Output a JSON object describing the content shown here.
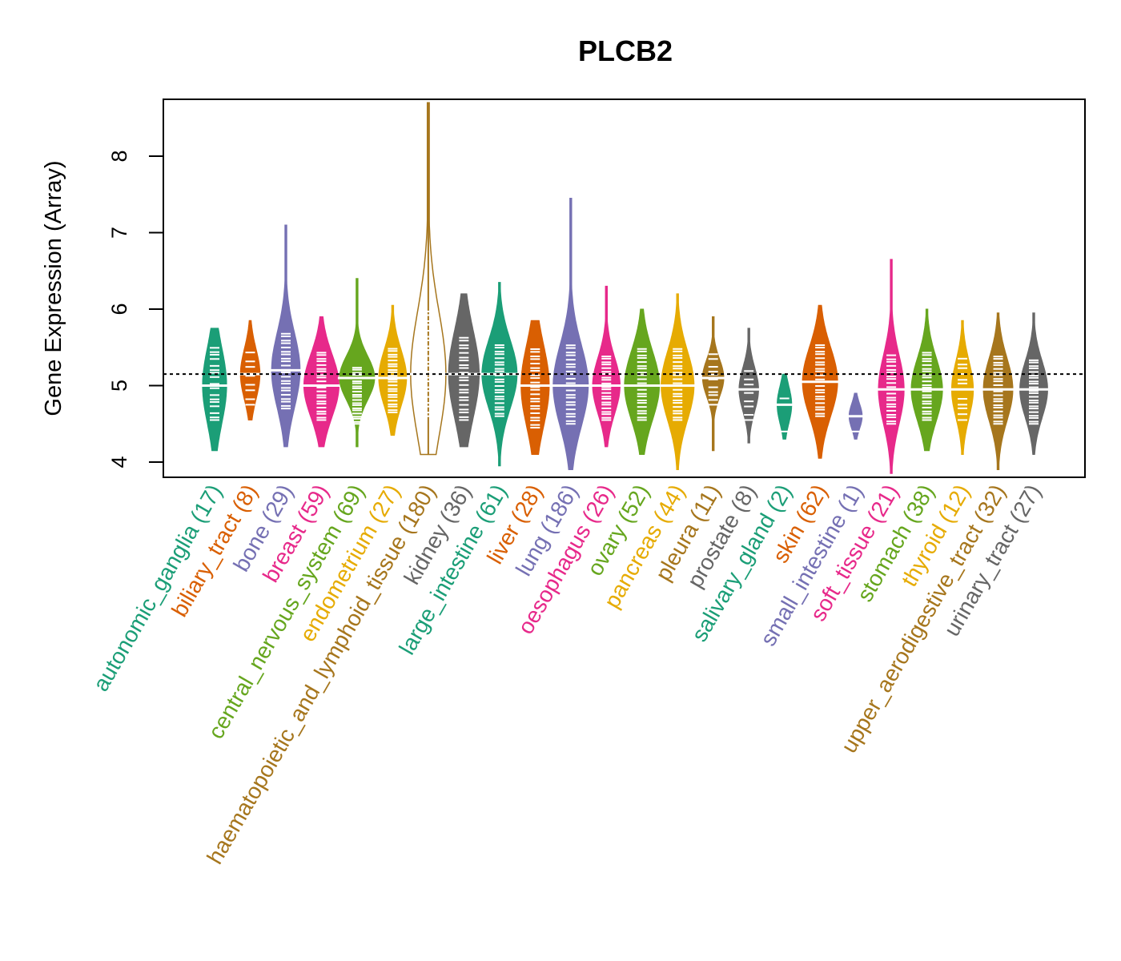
{
  "chart_data": {
    "type": "violin-beeswarm",
    "title": "PLCB2",
    "xlabel": "",
    "ylabel": "Gene Expression (Array)",
    "ylim": [
      3.85,
      8.75
    ],
    "yticks": [
      4,
      5,
      6,
      7,
      8
    ],
    "reference_line": 5.15,
    "grid": false,
    "categories": [
      {
        "name": "autonomic_ganglia",
        "n": 17,
        "color": "#1B9E77",
        "min": 4.15,
        "max": 5.75,
        "median": 5.0,
        "q1": 4.75,
        "q3": 5.35
      },
      {
        "name": "biliary_tract",
        "n": 8,
        "color": "#D95F02",
        "min": 4.55,
        "max": 5.85,
        "median": 5.15,
        "q1": 4.95,
        "q3": 5.35
      },
      {
        "name": "bone",
        "n": 29,
        "color": "#7570B3",
        "min": 4.2,
        "max": 7.1,
        "median": 5.2,
        "q1": 4.9,
        "q3": 5.5
      },
      {
        "name": "breast",
        "n": 59,
        "color": "#E7298A",
        "min": 4.2,
        "max": 5.9,
        "median": 5.0,
        "q1": 4.75,
        "q3": 5.25
      },
      {
        "name": "central_nervous_system",
        "n": 69,
        "color": "#66A61E",
        "min": 4.2,
        "max": 6.4,
        "median": 5.1,
        "q1": 4.7,
        "q3": 5.05
      },
      {
        "name": "endometrium",
        "n": 27,
        "color": "#E6AB02",
        "min": 4.35,
        "max": 6.05,
        "median": 5.1,
        "q1": 4.85,
        "q3": 5.3
      },
      {
        "name": "haematopoietic_and_lymphoid_tissue",
        "n": 180,
        "color": "#A6761D",
        "min": 4.1,
        "max": 8.7,
        "median": 5.15,
        "q1": 4.8,
        "q3": 5.8
      },
      {
        "name": "kidney",
        "n": 36,
        "color": "#666666",
        "min": 4.2,
        "max": 6.2,
        "median": 5.15,
        "q1": 4.75,
        "q3": 5.45
      },
      {
        "name": "large_intestine",
        "n": 61,
        "color": "#1B9E77",
        "min": 3.95,
        "max": 6.35,
        "median": 5.15,
        "q1": 4.8,
        "q3": 5.35
      },
      {
        "name": "liver",
        "n": 28,
        "color": "#D95F02",
        "min": 4.1,
        "max": 5.85,
        "median": 5.0,
        "q1": 4.65,
        "q3": 5.3
      },
      {
        "name": "lung",
        "n": 186,
        "color": "#7570B3",
        "min": 3.9,
        "max": 7.45,
        "median": 5.0,
        "q1": 4.7,
        "q3": 5.35
      },
      {
        "name": "oesophagus",
        "n": 26,
        "color": "#E7298A",
        "min": 4.2,
        "max": 6.3,
        "median": 5.0,
        "q1": 4.75,
        "q3": 5.2
      },
      {
        "name": "ovary",
        "n": 52,
        "color": "#66A61E",
        "min": 4.1,
        "max": 6.0,
        "median": 5.0,
        "q1": 4.75,
        "q3": 5.3
      },
      {
        "name": "pancreas",
        "n": 44,
        "color": "#E6AB02",
        "min": 3.9,
        "max": 6.2,
        "median": 5.0,
        "q1": 4.75,
        "q3": 5.3
      },
      {
        "name": "pleura",
        "n": 11,
        "color": "#A6761D",
        "min": 4.15,
        "max": 5.9,
        "median": 5.1,
        "q1": 4.95,
        "q3": 5.25
      },
      {
        "name": "prostate",
        "n": 8,
        "color": "#666666",
        "min": 4.25,
        "max": 5.75,
        "median": 4.95,
        "q1": 4.75,
        "q3": 5.1
      },
      {
        "name": "salivary_gland",
        "n": 2,
        "color": "#1B9E77",
        "min": 4.3,
        "max": 5.15,
        "median": 4.75,
        "q1": 4.6,
        "q3": 4.9
      },
      {
        "name": "skin",
        "n": 62,
        "color": "#D95F02",
        "min": 4.05,
        "max": 6.05,
        "median": 5.05,
        "q1": 4.8,
        "q3": 5.35
      },
      {
        "name": "small_intestine",
        "n": 1,
        "color": "#7570B3",
        "min": 4.3,
        "max": 4.9,
        "median": 4.6,
        "q1": 4.6,
        "q3": 4.6
      },
      {
        "name": "soft_tissue",
        "n": 21,
        "color": "#E7298A",
        "min": 3.85,
        "max": 6.65,
        "median": 4.95,
        "q1": 4.7,
        "q3": 5.25
      },
      {
        "name": "stomach",
        "n": 38,
        "color": "#66A61E",
        "min": 4.15,
        "max": 6.0,
        "median": 4.95,
        "q1": 4.75,
        "q3": 5.25
      },
      {
        "name": "thyroid",
        "n": 12,
        "color": "#E6AB02",
        "min": 4.1,
        "max": 5.85,
        "median": 4.95,
        "q1": 4.75,
        "q3": 5.2
      },
      {
        "name": "upper_aerodigestive_tract",
        "n": 32,
        "color": "#A6761D",
        "min": 3.9,
        "max": 5.95,
        "median": 4.95,
        "q1": 4.7,
        "q3": 5.2
      },
      {
        "name": "urinary_tract",
        "n": 27,
        "color": "#666666",
        "min": 4.1,
        "max": 5.95,
        "median": 4.95,
        "q1": 4.7,
        "q3": 5.15
      }
    ]
  }
}
